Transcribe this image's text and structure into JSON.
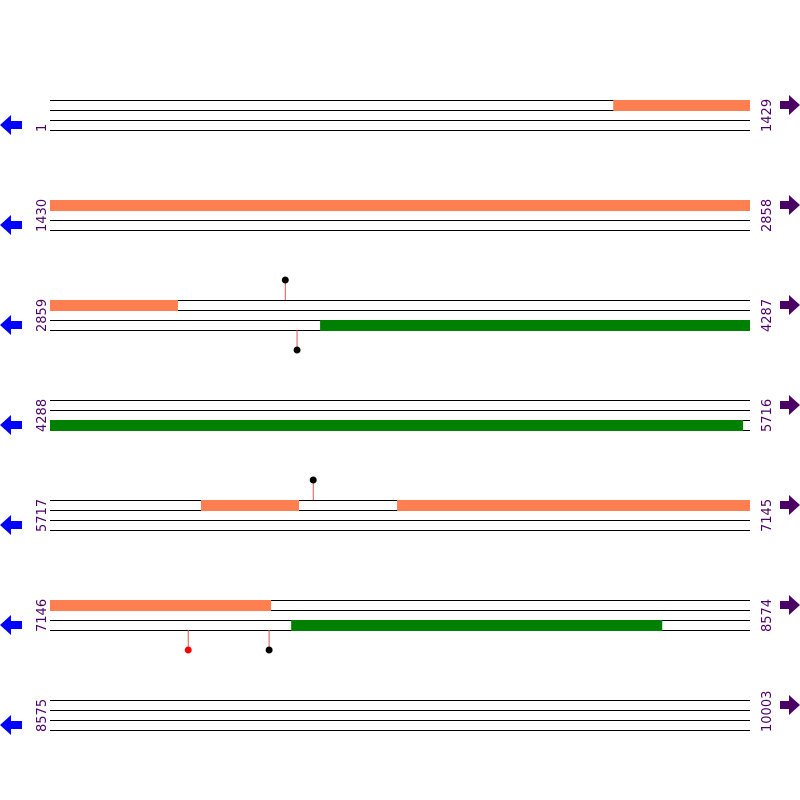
{
  "rows": [
    {
      "start": 1,
      "end": 1429
    },
    {
      "start": 1430,
      "end": 2858
    },
    {
      "start": 2859,
      "end": 4287
    },
    {
      "start": 4288,
      "end": 5716
    },
    {
      "start": 5717,
      "end": 7145
    },
    {
      "start": 7146,
      "end": 8574
    },
    {
      "start": 8575,
      "end": 10003
    }
  ],
  "features": [
    {
      "row": 0,
      "track": 0,
      "start": 1150,
      "end": 1429,
      "color": "#ff7f50"
    },
    {
      "row": 1,
      "track": 0,
      "start": 1430,
      "end": 2858,
      "color": "#ff7f50"
    },
    {
      "row": 2,
      "track": 0,
      "start": 2859,
      "end": 3120,
      "color": "#ff7f50"
    },
    {
      "row": 2,
      "track": 2,
      "start": 3410,
      "end": 4287,
      "color": "#008000"
    },
    {
      "row": 3,
      "track": 2,
      "start": 4288,
      "end": 5702,
      "color": "#008000"
    },
    {
      "row": 4,
      "track": 0,
      "start": 6025,
      "end": 6225,
      "color": "#ff7f50"
    },
    {
      "row": 4,
      "track": 0,
      "start": 6425,
      "end": 7145,
      "color": "#ff7f50"
    },
    {
      "row": 5,
      "track": 0,
      "start": 7146,
      "end": 7597,
      "color": "#ff7f50"
    },
    {
      "row": 5,
      "track": 2,
      "start": 7638,
      "end": 8395,
      "color": "#008000"
    }
  ],
  "markers": [
    {
      "row": 2,
      "position": 3339,
      "side": "top",
      "color": "#000000"
    },
    {
      "row": 2,
      "position": 3363,
      "side": "bottom",
      "color": "#000000"
    },
    {
      "row": 4,
      "position": 6254,
      "side": "top",
      "color": "#000000"
    },
    {
      "row": 5,
      "position": 7428,
      "side": "bottom",
      "color": "#ff0000"
    },
    {
      "row": 5,
      "position": 7593,
      "side": "bottom",
      "color": "#000000"
    }
  ]
}
